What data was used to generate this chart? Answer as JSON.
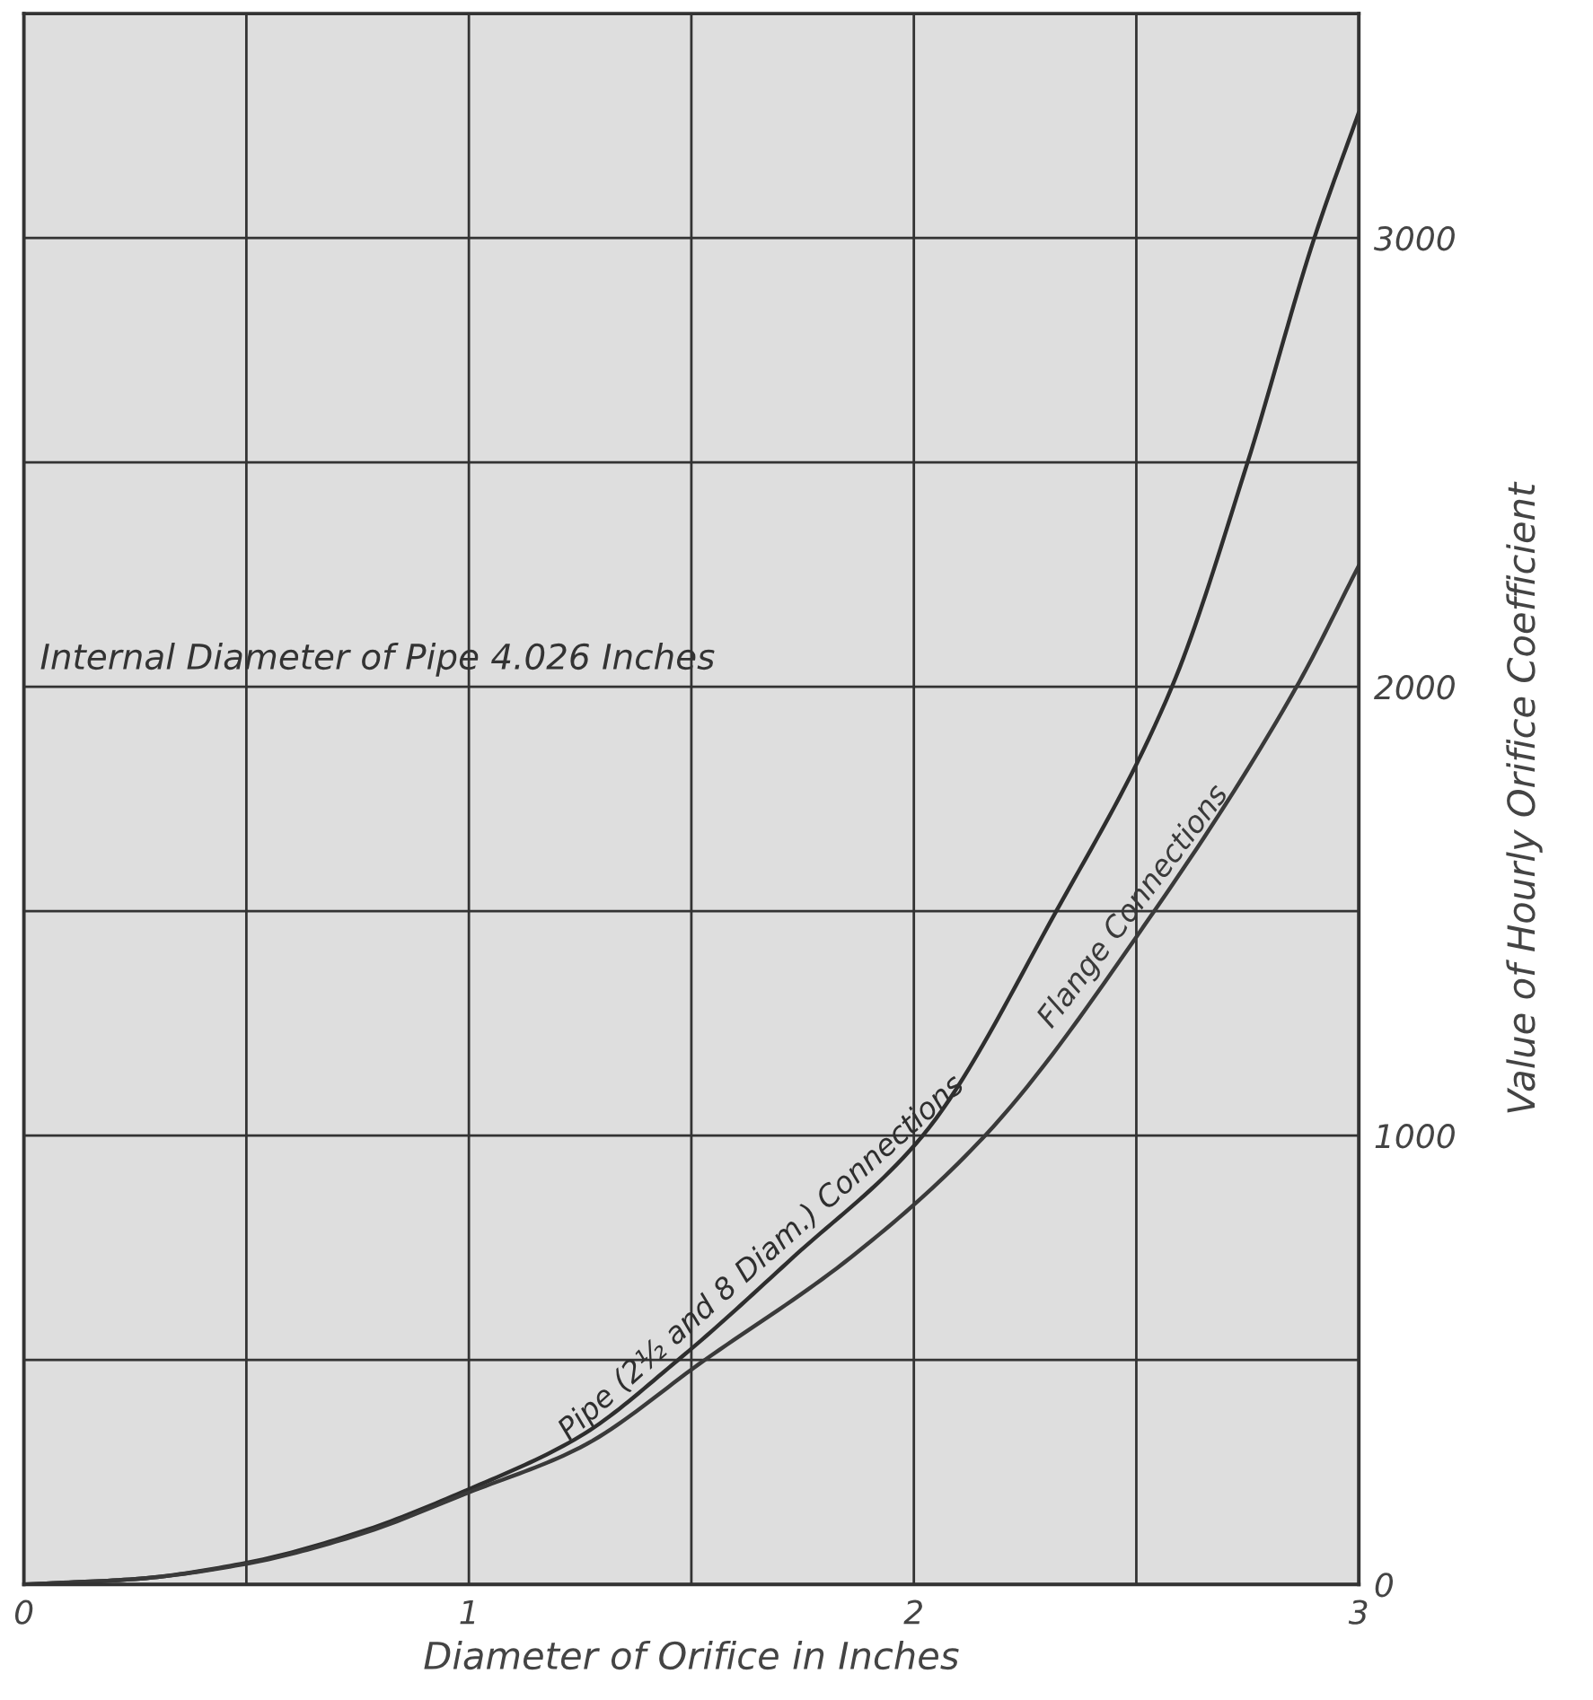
{
  "chart_data": {
    "type": "line",
    "xlabel": "Diameter of Orifice in Inches",
    "ylabel": "Value of Hourly Orifice Coefficient",
    "annotations": [
      "Internal Diameter of Pipe 4.026 Inches"
    ],
    "series": [
      {
        "name": "Pipe (2½ and 8 Diam.) Connections",
        "color": "#2e2e2e",
        "x": [
          0,
          0.25,
          0.5,
          0.75,
          1,
          1.25,
          1.47,
          1.73,
          2.02,
          2.32,
          2.58,
          2.75,
          2.9,
          3
        ],
        "values": [
          0,
          12,
          48,
          115,
          212,
          330,
          500,
          730,
          1000,
          1500,
          2000,
          2500,
          3000,
          3280
        ]
      },
      {
        "name": "Flange Connections",
        "color": "#3a3a3a",
        "x": [
          0,
          0.25,
          0.5,
          0.75,
          1,
          1.25,
          1.53,
          1.86,
          2.16,
          2.54,
          2.86,
          3
        ],
        "values": [
          0,
          12,
          46,
          110,
          205,
          305,
          500,
          730,
          1000,
          1500,
          2000,
          2270
        ]
      }
    ],
    "xlim": [
      0,
      3
    ],
    "ylim": [
      0,
      3500
    ],
    "xticks": [
      0,
      {
        "value": 0.5,
        "label": null
      },
      1,
      {
        "value": 1.5,
        "label": null
      },
      2,
      {
        "value": 2.5,
        "label": null
      },
      3
    ],
    "yticks": [
      0,
      {
        "value": 500,
        "label": null
      },
      1000,
      {
        "value": 1500,
        "label": null
      },
      2000,
      {
        "value": 2500,
        "label": null
      },
      3000,
      {
        "value": 3500,
        "label": null
      }
    ],
    "grid": true,
    "legend": false,
    "marker": "none",
    "line_style": "solid"
  }
}
